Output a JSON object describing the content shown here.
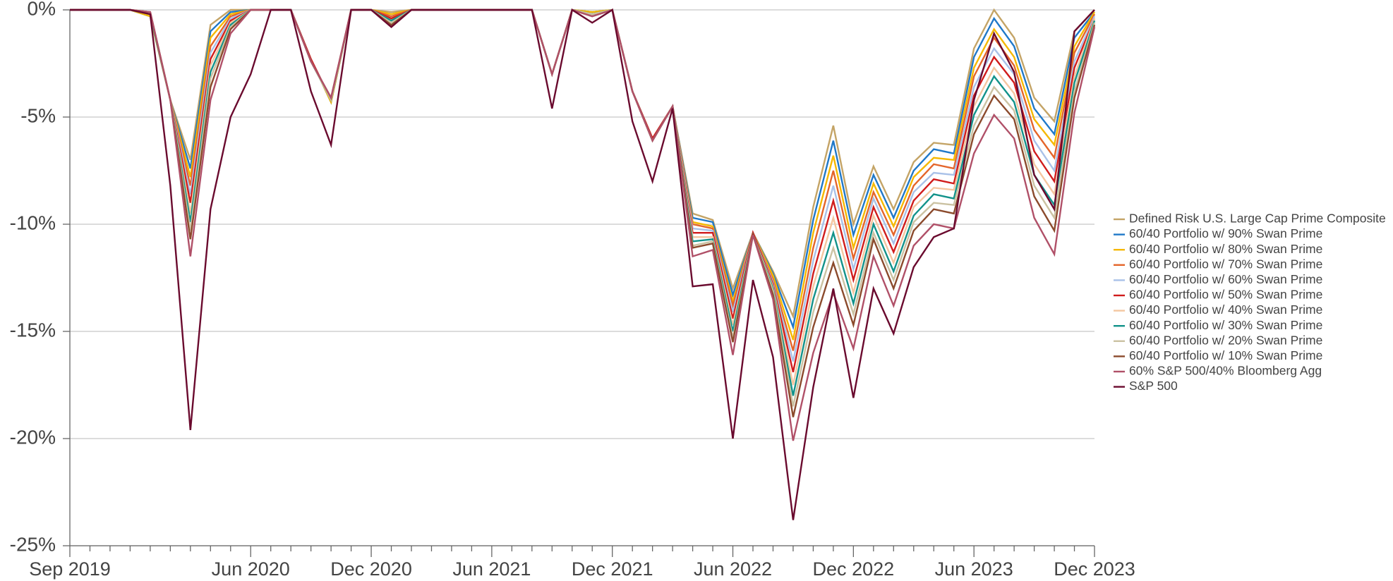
{
  "chart_data": {
    "type": "line",
    "categories": [
      "Sep 2019",
      null,
      null,
      null,
      null,
      null,
      null,
      null,
      null,
      "Jun 2020",
      null,
      null,
      null,
      null,
      null,
      "Dec 2020",
      null,
      null,
      null,
      null,
      null,
      "Jun 2021",
      null,
      null,
      null,
      null,
      null,
      "Dec 2021",
      null,
      null,
      null,
      null,
      null,
      "Jun 2022",
      null,
      null,
      null,
      null,
      null,
      "Dec 2022",
      null,
      null,
      null,
      null,
      null,
      "Jun 2023",
      null,
      null,
      null,
      null,
      null,
      "Dec 2023"
    ],
    "ylim": [
      -25,
      0
    ],
    "yticks": [
      {
        "value": 0,
        "label": "0%"
      },
      {
        "value": -5,
        "label": "-5%"
      },
      {
        "value": -10,
        "label": "-10%"
      },
      {
        "value": -15,
        "label": "-15%"
      },
      {
        "value": -20,
        "label": "-20%"
      },
      {
        "value": -25,
        "label": "-25%"
      }
    ],
    "grid": true,
    "legend": "right",
    "series": [
      {
        "name": "Defined Risk U.S. Large Cap Prime Composite",
        "color": "#c4a466",
        "values": [
          0,
          0,
          0,
          0,
          -0.3,
          -4.2,
          -7.0,
          -0.7,
          0,
          0,
          0,
          0,
          -2.3,
          -4.3,
          0,
          0,
          -0.1,
          0,
          0,
          0,
          0,
          0,
          0,
          0,
          -3.0,
          0,
          -0.1,
          0,
          -3.8,
          -6.0,
          -4.5,
          -9.5,
          -9.8,
          -13.0,
          -10.4,
          -12.2,
          -14.3,
          -9.2,
          -5.4,
          -10.0,
          -7.3,
          -9.3,
          -7.1,
          -6.2,
          -6.3,
          -1.8,
          0,
          -1.3,
          -4.1,
          -5.2,
          -1.0,
          0
        ]
      },
      {
        "name": "60/40 Portfolio w/ 90% Swan Prime",
        "color": "#1f78c8",
        "values": [
          0,
          0,
          0,
          0,
          -0.3,
          -4.2,
          -7.4,
          -1.0,
          -0.1,
          0,
          0,
          0,
          -2.3,
          -4.3,
          0,
          0,
          -0.2,
          0,
          0,
          0,
          0,
          0,
          0,
          0,
          -3.0,
          0,
          -0.1,
          0,
          -3.8,
          -6.0,
          -4.5,
          -9.7,
          -9.9,
          -13.3,
          -10.4,
          -12.3,
          -14.8,
          -9.8,
          -6.1,
          -10.5,
          -7.7,
          -9.7,
          -7.5,
          -6.5,
          -6.7,
          -2.2,
          -0.4,
          -1.7,
          -4.6,
          -5.8,
          -1.3,
          -0.1
        ]
      },
      {
        "name": "60/40 Portfolio w/ 80% Swan Prime",
        "color": "#f5b800",
        "values": [
          0,
          0,
          0,
          0,
          -0.3,
          -4.2,
          -7.8,
          -1.3,
          -0.2,
          0,
          0,
          0,
          -2.3,
          -4.3,
          0,
          0,
          -0.2,
          0,
          0,
          0,
          0,
          0,
          0,
          0,
          -3.0,
          0,
          -0.1,
          0,
          -3.8,
          -6.0,
          -4.5,
          -9.9,
          -10.1,
          -13.6,
          -10.4,
          -12.4,
          -15.4,
          -10.4,
          -6.8,
          -11.1,
          -8.1,
          -10.1,
          -7.8,
          -6.9,
          -7.0,
          -2.7,
          -0.9,
          -2.2,
          -5.1,
          -6.3,
          -1.7,
          -0.1
        ]
      },
      {
        "name": "60/40 Portfolio w/ 70% Swan Prime",
        "color": "#e4652a",
        "values": [
          0,
          0,
          0,
          0,
          -0.2,
          -4.2,
          -8.2,
          -1.7,
          -0.3,
          0,
          0,
          0,
          -2.3,
          -4.2,
          0,
          0,
          -0.3,
          0,
          0,
          0,
          0,
          0,
          0,
          0,
          -3.0,
          0,
          -0.2,
          0,
          -3.8,
          -6.0,
          -4.5,
          -10.0,
          -10.2,
          -13.8,
          -10.4,
          -12.6,
          -15.9,
          -11.1,
          -7.5,
          -11.6,
          -8.5,
          -10.5,
          -8.2,
          -7.2,
          -7.4,
          -3.1,
          -1.3,
          -2.6,
          -5.6,
          -6.9,
          -2.0,
          -0.2
        ]
      },
      {
        "name": "60/40 Portfolio w/ 60% Swan Prime",
        "color": "#a9c1e8",
        "values": [
          0,
          0,
          0,
          0,
          -0.2,
          -4.2,
          -8.6,
          -2.0,
          -0.4,
          0,
          0,
          0,
          -2.3,
          -4.2,
          0,
          0,
          -0.4,
          0,
          0,
          0,
          0,
          0,
          0,
          0,
          -3.0,
          0,
          -0.2,
          0,
          -3.8,
          -6.0,
          -4.5,
          -10.2,
          -10.3,
          -14.1,
          -10.4,
          -12.7,
          -16.4,
          -11.7,
          -8.2,
          -12.1,
          -8.8,
          -10.9,
          -8.5,
          -7.6,
          -7.7,
          -3.6,
          -1.8,
          -3.0,
          -6.1,
          -7.5,
          -2.4,
          -0.3
        ]
      },
      {
        "name": "60/40 Portfolio w/ 50% Swan Prime",
        "color": "#d01c1c",
        "values": [
          0,
          0,
          0,
          0,
          -0.2,
          -4.2,
          -9.0,
          -2.3,
          -0.5,
          0,
          0,
          0,
          -2.3,
          -4.2,
          0,
          0,
          -0.4,
          0,
          0,
          0,
          0,
          0,
          0,
          0,
          -3.0,
          0,
          -0.2,
          0,
          -3.8,
          -6.0,
          -4.5,
          -10.4,
          -10.4,
          -14.4,
          -10.4,
          -12.8,
          -16.9,
          -12.3,
          -8.9,
          -12.6,
          -9.2,
          -11.3,
          -8.9,
          -7.9,
          -8.1,
          -4.0,
          -2.2,
          -3.4,
          -6.6,
          -8.0,
          -2.7,
          -0.4
        ]
      },
      {
        "name": "60/40 Portfolio w/ 40% Swan Prime",
        "color": "#f4c6a0",
        "values": [
          0,
          0,
          0,
          0,
          -0.2,
          -4.2,
          -9.5,
          -2.6,
          -0.6,
          0,
          0,
          0,
          -2.4,
          -4.2,
          0,
          0,
          -0.5,
          0,
          0,
          0,
          0,
          0,
          0,
          0,
          -3.0,
          0,
          -0.2,
          0,
          -3.8,
          -6.1,
          -4.5,
          -10.6,
          -10.6,
          -14.7,
          -10.5,
          -12.9,
          -17.5,
          -12.9,
          -9.7,
          -13.2,
          -9.6,
          -11.8,
          -9.2,
          -8.3,
          -8.4,
          -4.5,
          -2.7,
          -3.9,
          -7.2,
          -8.6,
          -3.1,
          -0.4
        ]
      },
      {
        "name": "60/40 Portfolio w/ 30% Swan Prime",
        "color": "#12928a",
        "values": [
          0,
          0,
          0,
          0,
          -0.2,
          -4.2,
          -9.9,
          -2.9,
          -0.7,
          0,
          0,
          0,
          -2.4,
          -4.2,
          0,
          0,
          -0.5,
          0,
          0,
          0,
          0,
          0,
          0,
          0,
          -3.0,
          0,
          -0.2,
          0,
          -3.8,
          -6.1,
          -4.5,
          -10.8,
          -10.7,
          -15.0,
          -10.5,
          -13.0,
          -18.0,
          -13.5,
          -10.4,
          -13.7,
          -10.0,
          -12.2,
          -9.6,
          -8.6,
          -8.8,
          -4.9,
          -3.1,
          -4.3,
          -7.7,
          -9.1,
          -3.4,
          -0.5
        ]
      },
      {
        "name": "60/40 Portfolio w/ 20% Swan Prime",
        "color": "#cbc2a2",
        "values": [
          0,
          0,
          0,
          0,
          -0.1,
          -4.2,
          -10.3,
          -3.2,
          -0.8,
          0,
          0,
          0,
          -2.4,
          -4.2,
          0,
          0,
          -0.6,
          0,
          0,
          0,
          0,
          0,
          0,
          0,
          -3.0,
          0,
          -0.2,
          0,
          -3.8,
          -6.1,
          -4.5,
          -11.0,
          -10.8,
          -15.3,
          -10.5,
          -13.1,
          -18.5,
          -14.1,
          -11.1,
          -14.2,
          -10.4,
          -12.6,
          -9.9,
          -9.0,
          -9.1,
          -5.4,
          -3.6,
          -4.7,
          -8.2,
          -9.7,
          -3.8,
          -0.6
        ]
      },
      {
        "name": "60/40 Portfolio w/ 10% Swan Prime",
        "color": "#8b4a2c",
        "values": [
          0,
          0,
          0,
          0,
          -0.1,
          -4.2,
          -10.7,
          -3.6,
          -0.9,
          0,
          0,
          0,
          -2.4,
          -4.1,
          0,
          0,
          -0.7,
          0,
          0,
          0,
          0,
          0,
          0,
          0,
          -3.0,
          0,
          -0.3,
          0,
          -3.8,
          -6.1,
          -4.5,
          -11.1,
          -10.9,
          -15.5,
          -10.5,
          -13.3,
          -19.0,
          -14.8,
          -11.8,
          -14.7,
          -10.7,
          -13.0,
          -10.3,
          -9.3,
          -9.5,
          -5.8,
          -4.0,
          -5.1,
          -8.7,
          -10.3,
          -4.1,
          -0.7
        ]
      },
      {
        "name": "60% S&P 500/40% Bloomberg Agg",
        "color": "#b05068",
        "values": [
          0,
          0,
          0,
          0,
          -0.1,
          -4.2,
          -11.5,
          -4.2,
          -1.1,
          0,
          0,
          0,
          -2.4,
          -4.1,
          0,
          0,
          -0.8,
          0,
          0,
          0,
          0,
          0,
          0,
          0,
          -3.0,
          0,
          -0.3,
          0,
          -3.8,
          -6.1,
          -4.5,
          -11.5,
          -11.2,
          -16.1,
          -10.5,
          -13.5,
          -20.1,
          -16.0,
          -13.2,
          -15.8,
          -11.5,
          -13.8,
          -11.0,
          -10.0,
          -10.2,
          -6.7,
          -4.9,
          -6.0,
          -9.7,
          -11.4,
          -4.8,
          -0.8
        ]
      },
      {
        "name": "S&P 500",
        "color": "#6a0a2e",
        "values": [
          0,
          0,
          0,
          0,
          -0.2,
          -8.2,
          -19.6,
          -9.3,
          -5.0,
          -3.0,
          0,
          0,
          -3.8,
          -6.3,
          0,
          0,
          -0.8,
          0,
          0,
          0,
          0,
          0,
          0,
          0,
          -4.6,
          0,
          -0.6,
          0,
          -5.2,
          -8.0,
          -4.6,
          -12.9,
          -12.8,
          -20.0,
          -12.6,
          -16.2,
          -23.8,
          -17.6,
          -13.0,
          -18.1,
          -13.0,
          -15.1,
          -12.0,
          -10.6,
          -10.2,
          -4.2,
          -1.1,
          -2.9,
          -7.7,
          -9.3,
          -1.0,
          0
        ]
      }
    ]
  }
}
